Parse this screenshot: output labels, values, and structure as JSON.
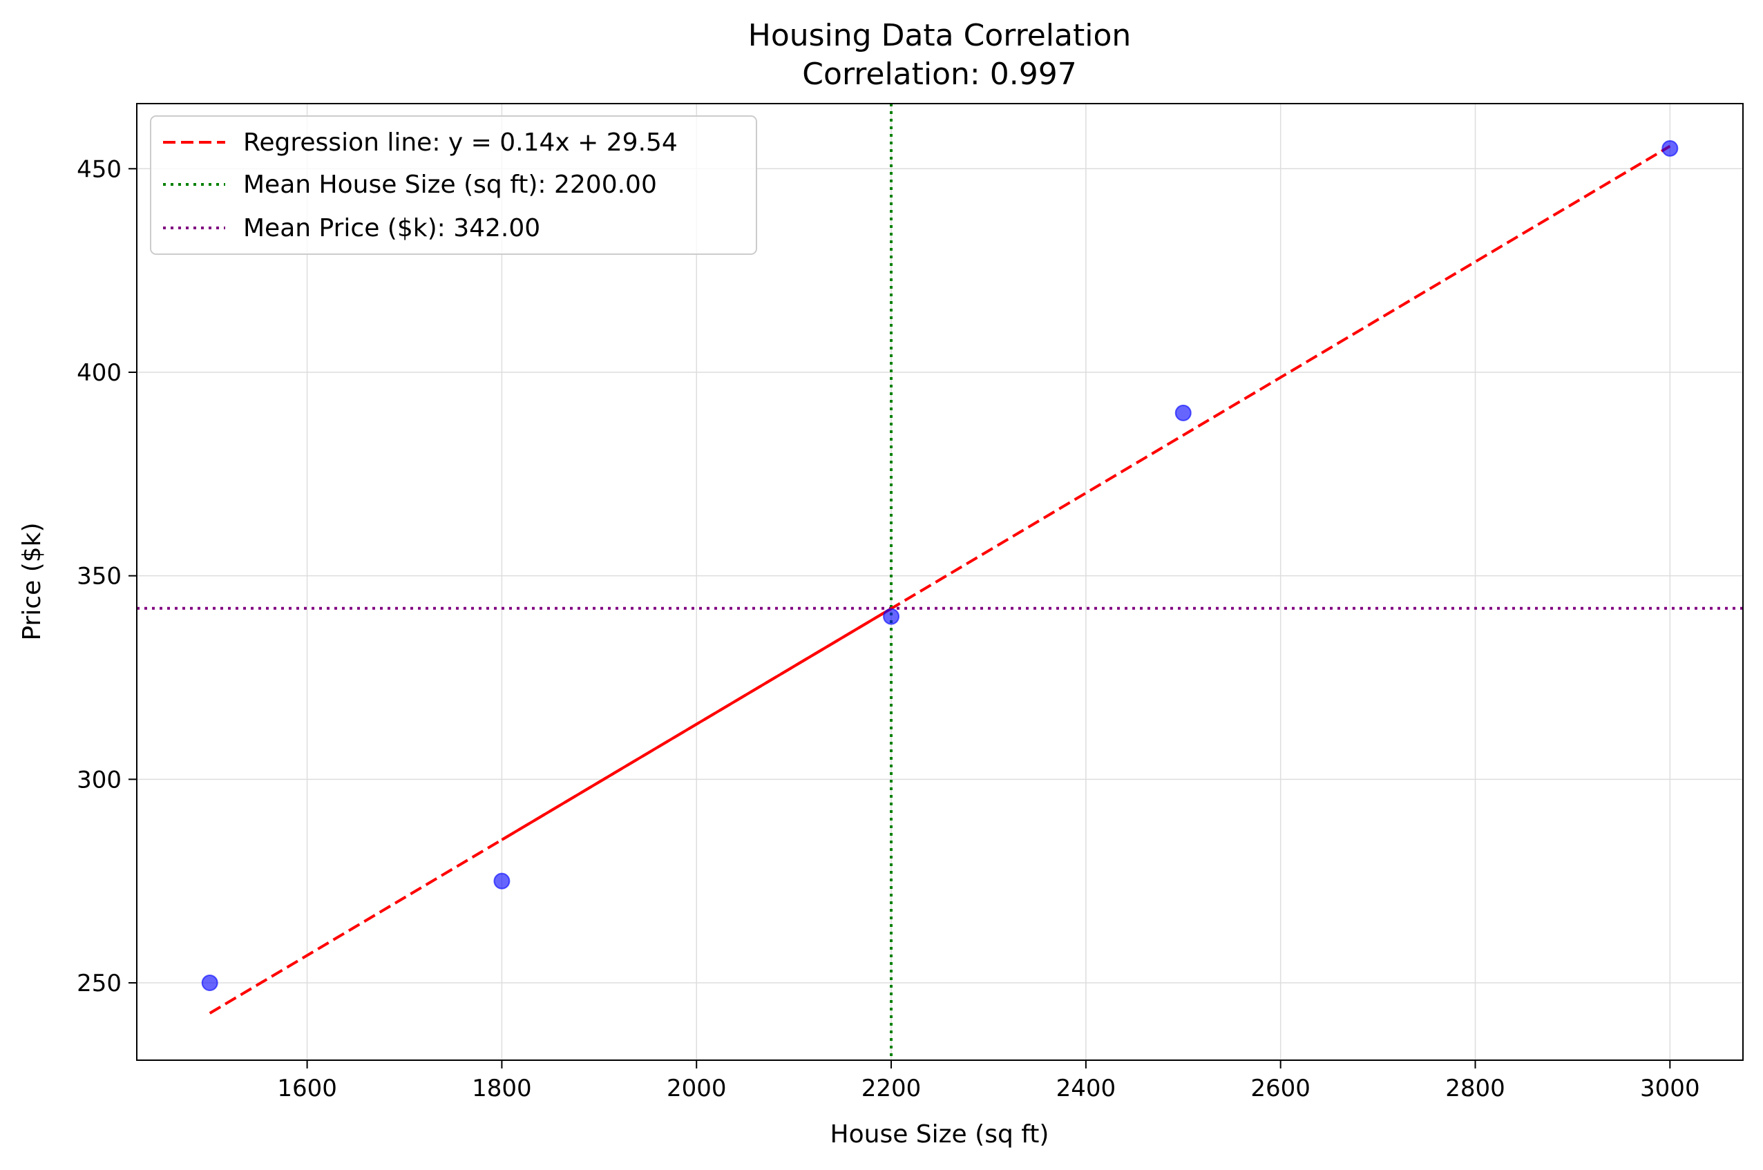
{
  "chart_data": {
    "type": "scatter",
    "title": "Housing Data Correlation",
    "subtitle": "Correlation: 0.997",
    "xlabel": "House Size (sq ft)",
    "ylabel": "Price ($k)",
    "xlim": [
      1425,
      3075
    ],
    "ylim": [
      231,
      466
    ],
    "xticks": [
      1600,
      1800,
      2000,
      2200,
      2400,
      2600,
      2800,
      3000
    ],
    "yticks": [
      250,
      300,
      350,
      400,
      450
    ],
    "grid": true,
    "legend_position": "top-left",
    "points": {
      "color": "#0000ff",
      "x": [
        1500,
        1800,
        2200,
        2500,
        3000
      ],
      "y": [
        250,
        275,
        340,
        390,
        455
      ]
    },
    "regression": {
      "label": "Regression line: y = 0.14x + 29.54",
      "slope": 0.142,
      "intercept": 29.54,
      "x_range": [
        1500,
        3000
      ],
      "solid_x_range": [
        1800,
        2200
      ],
      "color": "#ff0000"
    },
    "mean_x": {
      "label": "Mean House Size (sq ft): 2200.00",
      "value": 2200,
      "color": "#008000"
    },
    "mean_y": {
      "label": "Mean Price ($k): 342.00",
      "value": 342,
      "color": "#800080"
    }
  }
}
